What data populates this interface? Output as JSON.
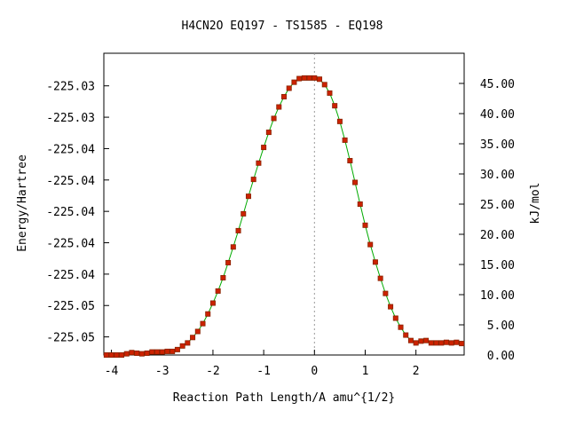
{
  "chart_data": {
    "type": "scatter",
    "title": "H4CN2O   EQ197 - TS1585 - EQ198",
    "xlabel": "Reaction Path Length/A amu^{1/2}",
    "ylabel_left": "Energy/Hartree",
    "ylabel_right": "kJ/mol",
    "xlim": [
      -4.15,
      2.95
    ],
    "ylim_kjmol": [
      0,
      50
    ],
    "x_ticks": [
      -4,
      -3,
      -2,
      -1,
      0,
      1,
      2
    ],
    "x_tick_labels": [
      "-4",
      "-3",
      "-2",
      "-1",
      "0",
      "1",
      "2"
    ],
    "right_ticks": [
      0,
      5,
      10,
      15,
      20,
      25,
      30,
      35,
      40,
      45
    ],
    "right_tick_labels": [
      "0.00",
      "5.00",
      "10.00",
      "15.00",
      "20.00",
      "25.00",
      "30.00",
      "35.00",
      "40.00",
      "45.00"
    ],
    "left_ticks_kjmol": [
      3.0,
      8.2,
      13.4,
      18.6,
      23.8,
      29.0,
      34.2,
      39.4,
      44.6
    ],
    "left_tick_labels": [
      "-225.05",
      "-225.05",
      "-225.04",
      "-225.04",
      "-225.04",
      "-225.04",
      "-225.04",
      "-225.03",
      "-225.03"
    ],
    "ts_x": 0,
    "colors": {
      "curve": "#00aa00",
      "marker_fill": "#cc2200",
      "marker_stroke": "#882200",
      "ts_line": "#999999"
    },
    "series": [
      {
        "x": [
          -4.1,
          -4.0,
          -3.9,
          -3.8,
          -3.7,
          -3.6,
          -3.5,
          -3.4,
          -3.3,
          -3.2,
          -3.1,
          -3.0,
          -2.9,
          -2.8,
          -2.7,
          -2.6,
          -2.5,
          -2.4,
          -2.3,
          -2.2,
          -2.1,
          -2.0,
          -1.9,
          -1.8,
          -1.7,
          -1.6,
          -1.5,
          -1.4,
          -1.3,
          -1.2,
          -1.1,
          -1.0,
          -0.9,
          -0.8,
          -0.7,
          -0.6,
          -0.5,
          -0.4,
          -0.3,
          -0.2,
          -0.1,
          0.0,
          0.1,
          0.2,
          0.3,
          0.4,
          0.5,
          0.6,
          0.7,
          0.8,
          0.9,
          1.0,
          1.1,
          1.2,
          1.3,
          1.4,
          1.5,
          1.6,
          1.7,
          1.8,
          1.9,
          2.0,
          2.1,
          2.2,
          2.3,
          2.4,
          2.5,
          2.6,
          2.7,
          2.8,
          2.9
        ],
        "y": [
          0.0,
          0.0,
          0.0,
          0.0,
          0.2,
          0.4,
          0.3,
          0.2,
          0.3,
          0.5,
          0.5,
          0.5,
          0.6,
          0.6,
          0.9,
          1.5,
          2.0,
          2.9,
          3.9,
          5.2,
          6.8,
          8.6,
          10.6,
          12.8,
          15.3,
          17.9,
          20.6,
          23.4,
          26.3,
          29.1,
          31.8,
          34.4,
          36.9,
          39.2,
          41.1,
          42.8,
          44.2,
          45.2,
          45.8,
          45.9,
          45.9,
          45.9,
          45.7,
          44.8,
          43.4,
          41.3,
          38.7,
          35.6,
          32.2,
          28.6,
          25.0,
          21.5,
          18.3,
          15.4,
          12.7,
          10.2,
          8.0,
          6.1,
          4.6,
          3.3,
          2.4,
          2.0,
          2.3,
          2.4,
          2.0,
          2.0,
          2.0,
          2.1,
          2.0,
          2.1,
          1.9
        ]
      }
    ]
  }
}
